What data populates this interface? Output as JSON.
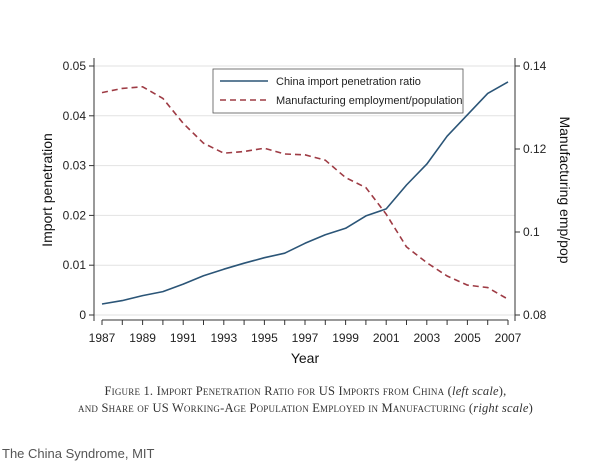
{
  "chart_data": {
    "type": "line",
    "xlabel": "Year",
    "ylabel_left": "Import penetration",
    "ylabel_right": "Manufacturing emp/pop",
    "x": [
      1987,
      1988,
      1989,
      1990,
      1991,
      1992,
      1993,
      1994,
      1995,
      1996,
      1997,
      1998,
      1999,
      2000,
      2001,
      2002,
      2003,
      2004,
      2005,
      2006,
      2007
    ],
    "x_ticks": [
      "1987",
      "1989",
      "1991",
      "1993",
      "1995",
      "1997",
      "1999",
      "2001",
      "2003",
      "2005",
      "2007"
    ],
    "ylim_left": [
      0,
      0.05
    ],
    "y_ticks_left": [
      "0",
      "0.01",
      "0.02",
      "0.03",
      "0.04",
      "0.05"
    ],
    "ylim_right": [
      0.08,
      0.14
    ],
    "y_ticks_right": [
      "0.08",
      "0.1",
      "0.12",
      "0.14"
    ],
    "grid": true,
    "legend": "top-center",
    "series": [
      {
        "name": "China import penetration ratio",
        "axis": "left",
        "style": "solid",
        "color": "#2b5577",
        "values": [
          0.0022,
          0.0029,
          0.0039,
          0.0047,
          0.0062,
          0.0079,
          0.0092,
          0.0104,
          0.0115,
          0.0124,
          0.0144,
          0.0161,
          0.0174,
          0.0199,
          0.0213,
          0.0261,
          0.0303,
          0.0359,
          0.0402,
          0.0445,
          0.0468
        ]
      },
      {
        "name": "Manufacturing employment/population",
        "axis": "right",
        "style": "dashed",
        "color": "#9e3b44",
        "values": [
          0.1336,
          0.1346,
          0.135,
          0.1322,
          0.1262,
          0.1214,
          0.119,
          0.1194,
          0.1202,
          0.1188,
          0.1186,
          0.1173,
          0.1131,
          0.1107,
          0.1043,
          0.0964,
          0.0926,
          0.0894,
          0.0872,
          0.0866,
          0.0838
        ]
      }
    ]
  },
  "caption": {
    "line1_main": "Figure 1. Import Penetration Ratio for US Imports from China (",
    "line1_italic": "left scale",
    "line1_end": "),",
    "line2_main": "and Share of US Working-Age Population Employed in Manufacturing (",
    "line2_italic": "right scale",
    "line2_end": ")"
  },
  "source": "The China Syndrome, MIT"
}
